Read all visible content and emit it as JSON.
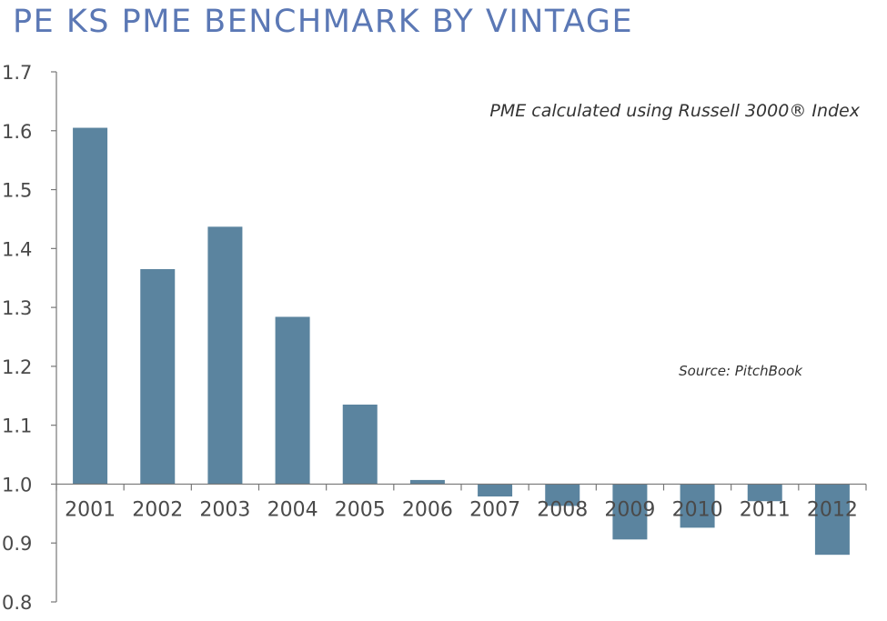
{
  "chart_data": {
    "type": "bar",
    "title": "PE KS PME BENCHMARK BY VINTAGE",
    "annotation": "PME calculated using Russell 3000® Index",
    "source": "Source: PitchBook",
    "categories": [
      "2001",
      "2002",
      "2003",
      "2004",
      "2005",
      "2006",
      "2007",
      "2008",
      "2009",
      "2010",
      "2011",
      "2012"
    ],
    "values": [
      1.605,
      1.365,
      1.437,
      1.284,
      1.135,
      1.007,
      0.979,
      0.963,
      0.906,
      0.926,
      0.971,
      0.88
    ],
    "baseline": 1.0,
    "ylim": [
      0.8,
      1.7
    ],
    "yticks": [
      "0.8",
      "0.9",
      "1.0",
      "1.1",
      "1.2",
      "1.3",
      "1.4",
      "1.5",
      "1.6",
      "1.7"
    ],
    "xlabel": "",
    "ylabel": "",
    "grid": false,
    "colors": {
      "bar": "#5b849f",
      "axis": "#777777",
      "title": "#5b78b5"
    }
  }
}
